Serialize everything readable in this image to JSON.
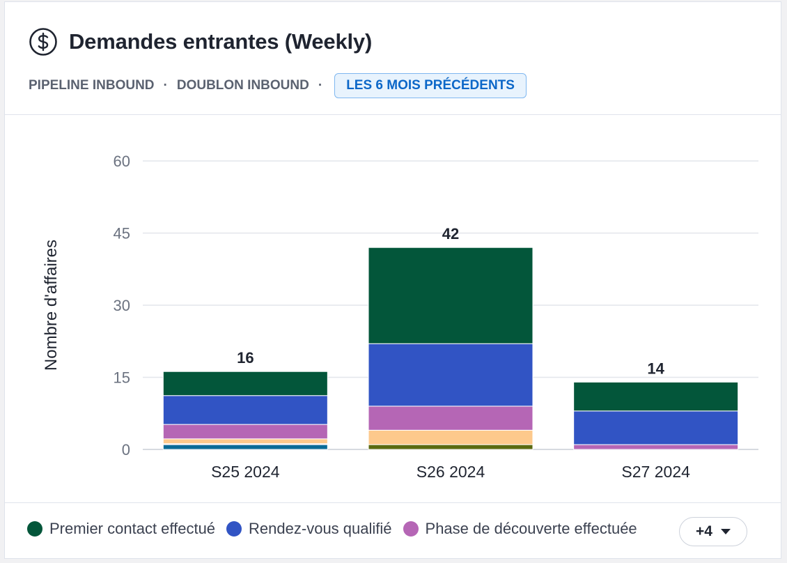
{
  "header": {
    "title": "Demandes entrantes (Weekly)",
    "icon": "dollar-circle-icon",
    "filters": [
      "PIPELINE INBOUND",
      "DOUBLON INBOUND"
    ],
    "date_range": "LES 6 MOIS PRÉCÉDENTS"
  },
  "legend": {
    "items": [
      {
        "label": "Premier contact effectué",
        "color": "#03563a"
      },
      {
        "label": "Rendez-vous qualifié",
        "color": "#3154c4"
      },
      {
        "label": "Phase de découverte effectuée",
        "color": "#b566b5"
      }
    ],
    "more_label": "+4"
  },
  "chart_data": {
    "type": "bar",
    "stacked": true,
    "ylabel": "Nombre d'affaires",
    "ylim": [
      0,
      60
    ],
    "yticks": [
      0,
      15,
      30,
      45,
      60
    ],
    "grid": true,
    "categories": [
      "S25 2024",
      "S26 2024",
      "S27 2024"
    ],
    "totals": [
      16,
      42,
      14
    ],
    "series": [
      {
        "color": "#0a6b97",
        "values": [
          1,
          0,
          0
        ]
      },
      {
        "color": "#5a6a10",
        "values": [
          0,
          1,
          0
        ]
      },
      {
        "color": "#f8c7d2",
        "values": [
          0.2,
          0,
          0
        ]
      },
      {
        "color": "#fdc98c",
        "values": [
          1,
          3,
          0
        ]
      },
      {
        "name": "Phase de découverte effectuée",
        "color": "#b566b5",
        "values": [
          3,
          5,
          1
        ]
      },
      {
        "name": "Rendez-vous qualifié",
        "color": "#3154c4",
        "values": [
          6,
          13,
          7
        ]
      },
      {
        "name": "Premier contact effectué",
        "color": "#03563a",
        "values": [
          5,
          20,
          6
        ]
      }
    ]
  }
}
